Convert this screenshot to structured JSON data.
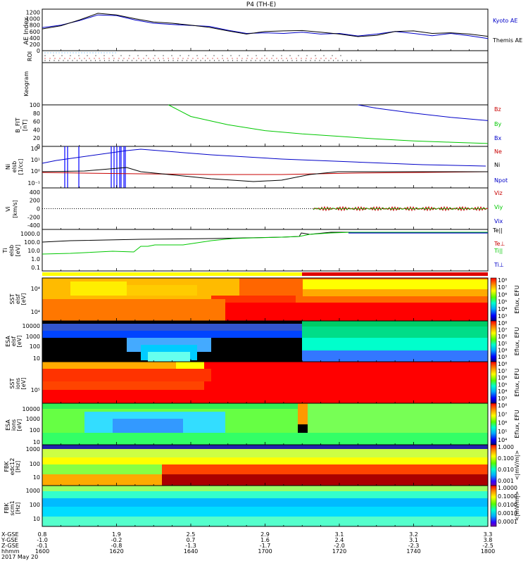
{
  "chart_data": [
    {
      "type": "line",
      "title": "P4 (TH-E)",
      "ylabel": "AE Index",
      "y_ticks": [
        "1200",
        "1000",
        "800",
        "600",
        "400",
        "200",
        "0"
      ],
      "ylim": [
        0,
        1300
      ],
      "series": [
        {
          "name": "Kyoto AE",
          "color": "#0000c8",
          "x": [
            1600,
            1605,
            1610,
            1615,
            1620,
            1625,
            1630,
            1635,
            1640,
            1645,
            1650,
            1655,
            1700,
            1705,
            1710,
            1715,
            1720,
            1725,
            1730,
            1735,
            1740,
            1745,
            1750,
            1755,
            1800
          ],
          "values": [
            720,
            800,
            940,
            1120,
            1100,
            960,
            860,
            820,
            790,
            760,
            640,
            540,
            560,
            540,
            580,
            520,
            540,
            460,
            520,
            600,
            540,
            470,
            540,
            470,
            380
          ]
        },
        {
          "name": "Themis AE",
          "color": "#000000",
          "x": [
            1600,
            1605,
            1610,
            1615,
            1620,
            1625,
            1630,
            1635,
            1640,
            1645,
            1650,
            1655,
            1700,
            1705,
            1710,
            1715,
            1720,
            1725,
            1730,
            1735,
            1740,
            1745,
            1750,
            1755,
            1800
          ],
          "values": [
            680,
            780,
            960,
            1170,
            1120,
            1000,
            900,
            860,
            800,
            730,
            620,
            520,
            600,
            620,
            630,
            580,
            520,
            440,
            480,
            600,
            620,
            540,
            560,
            520,
            450
          ]
        }
      ]
    },
    {
      "type": "heatmap",
      "ylabel": "ROI"
    },
    {
      "type": "heatmap",
      "ylabel": "Keogram"
    },
    {
      "type": "line",
      "ylabel": "B_FIT [nT]",
      "y_ticks": [
        "100",
        "80",
        "60",
        "40",
        "20",
        "0"
      ],
      "ylim": [
        0,
        100
      ],
      "series": [
        {
          "name": "Bz",
          "color": "#c80000",
          "x": [],
          "values": []
        },
        {
          "name": "By",
          "color": "#00c800",
          "x": [
            1634,
            1640,
            1650,
            1700,
            1710,
            1720,
            1730,
            1740,
            1750,
            1800
          ],
          "values": [
            100,
            72,
            52,
            38,
            30,
            24,
            18,
            13,
            10,
            7
          ]
        },
        {
          "name": "Bx",
          "color": "#0000c8",
          "x": [
            1725,
            1730,
            1740,
            1750,
            1800
          ],
          "values": [
            100,
            92,
            80,
            70,
            62
          ]
        }
      ]
    },
    {
      "type": "line",
      "ylabel": "Ni [1/cc]",
      "y_ticks": [
        "10^2",
        "10^1",
        "10^0",
        "10^-1"
      ],
      "series": [
        {
          "name": "Ne",
          "color": "#c80000"
        },
        {
          "name": "Ni",
          "color": "#000000"
        },
        {
          "name": "Npot",
          "color": "#0000c8"
        }
      ]
    },
    {
      "type": "line",
      "ylabel": "Vi [km/s]",
      "y_ticks": [
        "400",
        "200",
        "0",
        "-200",
        "-400"
      ],
      "ylim": [
        -500,
        500
      ],
      "series": [
        {
          "name": "Viz",
          "color": "#c80000"
        },
        {
          "name": "Viy",
          "color": "#00c800"
        },
        {
          "name": "Vix",
          "color": "#0000c8"
        }
      ]
    },
    {
      "type": "line",
      "ylabel": "Ti [eV]",
      "y_ticks": [
        "1000.0",
        "100.0",
        "10.0",
        "1.0",
        "0.1"
      ],
      "series": [
        {
          "name": "Te||",
          "color": "#000000"
        },
        {
          "name": "Te⊥",
          "color": "#c80000"
        },
        {
          "name": "Ti||",
          "color": "#00c800"
        },
        {
          "name": "Ti⊥",
          "color": "#0000c8"
        }
      ]
    },
    {
      "type": "heatmap",
      "ylabel": "SST [eV]",
      "y_ticks": [
        "10^4"
      ],
      "colorbar_label": "Eflux, EFU",
      "colorbar_ticks": [
        "10^8",
        "10^7",
        "10^6",
        "10^5",
        "10^4",
        "10^3"
      ]
    },
    {
      "type": "heatmap",
      "ylabel": "ESA [eV]",
      "y_ticks": [
        "10000",
        "1000",
        "100",
        "10"
      ],
      "colorbar_label": "Eflux, EFU",
      "colorbar_ticks": [
        "10^8",
        "10^7",
        "10^6",
        "10^5",
        "10^4",
        "10^3"
      ]
    },
    {
      "type": "heatmap",
      "ylabel": "SST [eV]",
      "y_ticks": [
        "10^5"
      ],
      "colorbar_label": "Eflux, EFU",
      "colorbar_ticks": [
        "10^8",
        "10^7",
        "10^6",
        "10^5",
        "10^4",
        "10^3"
      ]
    },
    {
      "type": "heatmap",
      "ylabel": "ESA [eV]",
      "y_ticks": [
        "10000",
        "1000",
        "100",
        "10"
      ],
      "colorbar_label": "Eflux, EFU",
      "colorbar_ticks": [
        "10^8",
        "10^7",
        "10^6",
        "10^5",
        "10^4"
      ]
    },
    {
      "type": "heatmap",
      "ylabel": "FBK [Hz]",
      "y_ticks": [
        "1000",
        "100",
        "10"
      ],
      "colorbar_label": "<|mV/m|>",
      "colorbar_ticks": [
        "1.000",
        "0.100",
        "0.010",
        "0.001"
      ]
    },
    {
      "type": "heatmap",
      "ylabel": "FBK [Hz]",
      "y_ticks": [
        "1000",
        "100",
        "10"
      ],
      "colorbar_label": "<|mV/m|>",
      "colorbar_ticks": [
        "1.0000",
        "0.1000",
        "0.0100",
        "0.0010",
        "0.0001"
      ]
    }
  ],
  "x_axis": {
    "row_labels": [
      "X-GSE",
      "Y-GSE",
      "Z-GSE",
      "hhmm",
      "2017 May 20"
    ],
    "columns": [
      {
        "x": 1600,
        "vals": [
          "0.8",
          "-1.0",
          "-0.1",
          "1600"
        ]
      },
      {
        "x": 1620,
        "vals": [
          "1.9",
          "-0.2",
          "-0.8",
          "1620"
        ]
      },
      {
        "x": 1640,
        "vals": [
          "2.5",
          "0.7",
          "-1.3",
          "1640"
        ]
      },
      {
        "x": 1700,
        "vals": [
          "2.9",
          "1.6",
          "-1.7",
          "1700"
        ]
      },
      {
        "x": 1720,
        "vals": [
          "3.1",
          "2.4",
          "-2.0",
          "1720"
        ]
      },
      {
        "x": 1740,
        "vals": [
          "3.2",
          "3.1",
          "-2.3",
          "1740"
        ]
      },
      {
        "x": 1800,
        "vals": [
          "3.3",
          "3.8",
          "-2.5",
          "1800"
        ]
      }
    ]
  },
  "labels": {
    "title": "P4 (TH-E)",
    "ae_ylabel": "AE Index",
    "roi_ylabel": "ROI",
    "keo_ylabel": "Keogram",
    "bfit_ylabel": "B_FIT",
    "bfit_unit": "[nT]",
    "ni_ylabel": "Ni",
    "ni_sub": "elsb",
    "ni_unit": "[1/cc]",
    "vi_ylabel": "Vi",
    "vi_unit": "[km/s]",
    "ti_ylabel": "Ti",
    "ti_sub": "elsb",
    "ti_unit": "[eV]",
    "sst1_ylabel": "SST",
    "sst1_sub": "elsf",
    "sst1_unit": "[eV]",
    "esa1_ylabel": "ESA",
    "esa1_sub": "elsf",
    "esa1_unit": "[eV]",
    "sst2_ylabel": "SST",
    "sst2_sub": "ions",
    "sst2_unit": "[eV]",
    "esa2_ylabel": "ESA",
    "esa2_sub": "ions",
    "esa2_unit": "[eV]",
    "fbk1_ylabel": "FBK",
    "fbk1_sub": "edc12",
    "fbk1_unit": "[Hz]",
    "fbk2_ylabel": "FBK",
    "fbk2_sub": "scm1",
    "fbk2_unit": "[Hz]",
    "eflux_label": "Eflux, EFU",
    "mvm_label": "<|mV/m|>",
    "kyoto": "Kyoto AE",
    "themis": "Themis AE",
    "bz": "Bz",
    "by": "By",
    "bx": "Bx",
    "ne": "Ne",
    "ni": "Ni",
    "npot": "Npot",
    "viz": "Viz",
    "viy": "Viy",
    "vix": "Vix",
    "tepar": "Te||",
    "teperp": "Te⊥",
    "tipar": "Ti||",
    "tiperp": "Ti⊥",
    "date": "2017 May 20"
  },
  "colors": {
    "red": "#c80000",
    "green": "#00c800",
    "blue": "#0000c8",
    "black": "#000000"
  }
}
